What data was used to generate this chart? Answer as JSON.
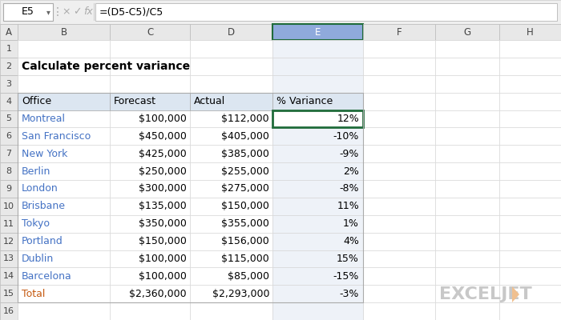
{
  "title": "Calculate percent variance",
  "formula_bar": "=(D5-C5)/C5",
  "cell_ref": "E5",
  "col_letters": [
    "A",
    "B",
    "C",
    "D",
    "E",
    "F",
    "G",
    "H"
  ],
  "headers": [
    "Office",
    "Forecast",
    "Actual",
    "% Variance"
  ],
  "offices": [
    "Montreal",
    "San Francisco",
    "New York",
    "Berlin",
    "London",
    "Brisbane",
    "Tokyo",
    "Portland",
    "Dublin",
    "Barcelona",
    "Total"
  ],
  "forecast": [
    "$100,000",
    "$450,000",
    "$425,000",
    "$250,000",
    "$300,000",
    "$135,000",
    "$350,000",
    "$150,000",
    "$100,000",
    "$100,000",
    "$2,360,000"
  ],
  "actual": [
    "$112,000",
    "$405,000",
    "$385,000",
    "$255,000",
    "$275,000",
    "$150,000",
    "$355,000",
    "$156,000",
    "$115,000",
    "$85,000",
    "$2,293,000"
  ],
  "variance": [
    "12%",
    "-10%",
    "-9%",
    "2%",
    "-8%",
    "11%",
    "1%",
    "4%",
    "15%",
    "-15%",
    "-3%"
  ],
  "bg_color": "#f2f2f2",
  "header_bg": "#dce6f1",
  "selected_cell_border": "#1f6b3a",
  "text_color_blue": "#4472c4",
  "text_color_orange": "#c55a11",
  "col_header_bg": "#e8e8e8",
  "active_col_header_bg": "#8faadc",
  "active_col_header_text": "#ffffff",
  "grid_color": "#d4d4d4",
  "logo_color_main": "#c8c8c8",
  "logo_color_accent": "#f0c090"
}
